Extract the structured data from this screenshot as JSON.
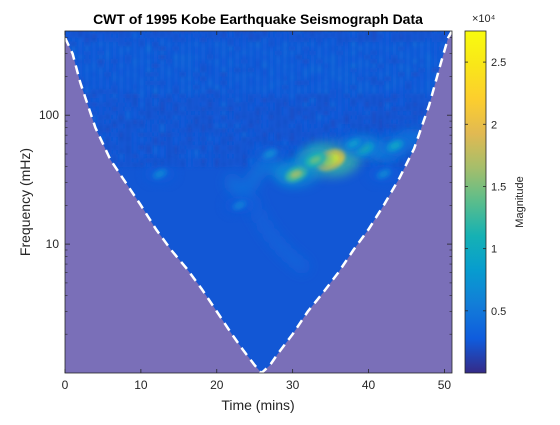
{
  "chart_data": {
    "type": "heatmap",
    "title": "CWT of 1995 Kobe Earthquake Seismograph Data",
    "xlabel": "Time (mins)",
    "ylabel": "Frequency (mHz)",
    "xlim": [
      0,
      51
    ],
    "ylim": [
      1,
      450
    ],
    "yscale": "log",
    "x_ticks": [
      0,
      10,
      20,
      30,
      40,
      50
    ],
    "y_ticks": [
      10,
      100
    ],
    "colorbar": {
      "label": "Magnitude",
      "range": [
        0,
        27500
      ],
      "ticks": [
        5000,
        10000,
        15000,
        20000,
        25000
      ],
      "tick_labels": [
        "0.5",
        "1",
        "1.5",
        "2",
        "2.5"
      ],
      "exponent_label": "×10⁴",
      "colormap": "parula"
    },
    "background_level": 2500,
    "features": [
      {
        "time": 35,
        "frequency": 45,
        "magnitude": 27000
      },
      {
        "time": 30.5,
        "frequency": 35,
        "magnitude": 16000
      },
      {
        "time": 33,
        "frequency": 45,
        "magnitude": 14000
      },
      {
        "time": 39.5,
        "frequency": 55,
        "magnitude": 11000
      },
      {
        "time": 43.5,
        "frequency": 58,
        "magnitude": 9000
      },
      {
        "time": 38,
        "frequency": 60,
        "magnitude": 8000
      },
      {
        "time": 27,
        "frequency": 50,
        "magnitude": 6500
      },
      {
        "time": 23,
        "frequency": 20,
        "magnitude": 5500
      },
      {
        "time": 12.5,
        "frequency": 35,
        "magnitude": 6000
      },
      {
        "time": 42,
        "frequency": 35,
        "magnitude": 6000
      }
    ],
    "cone_of_influence": {
      "edge_times": [
        0,
        1,
        2,
        4,
        6,
        8,
        10,
        12,
        14,
        16,
        18,
        20,
        22,
        23.5,
        25,
        25.9,
        27,
        28,
        30,
        32,
        34,
        36,
        38,
        40,
        42,
        44,
        46,
        48,
        49.5,
        50.5,
        51
      ],
      "frequencies": [
        400,
        300,
        180,
        80,
        45,
        30,
        20,
        13,
        9,
        6.5,
        4.5,
        3,
        2,
        1.5,
        1.15,
        1,
        1.15,
        1.4,
        2,
        3,
        4.2,
        6,
        9,
        13,
        20,
        32,
        55,
        120,
        250,
        400,
        450
      ],
      "shaded_color": "#7a6fb8",
      "line_style": "dashed"
    }
  }
}
